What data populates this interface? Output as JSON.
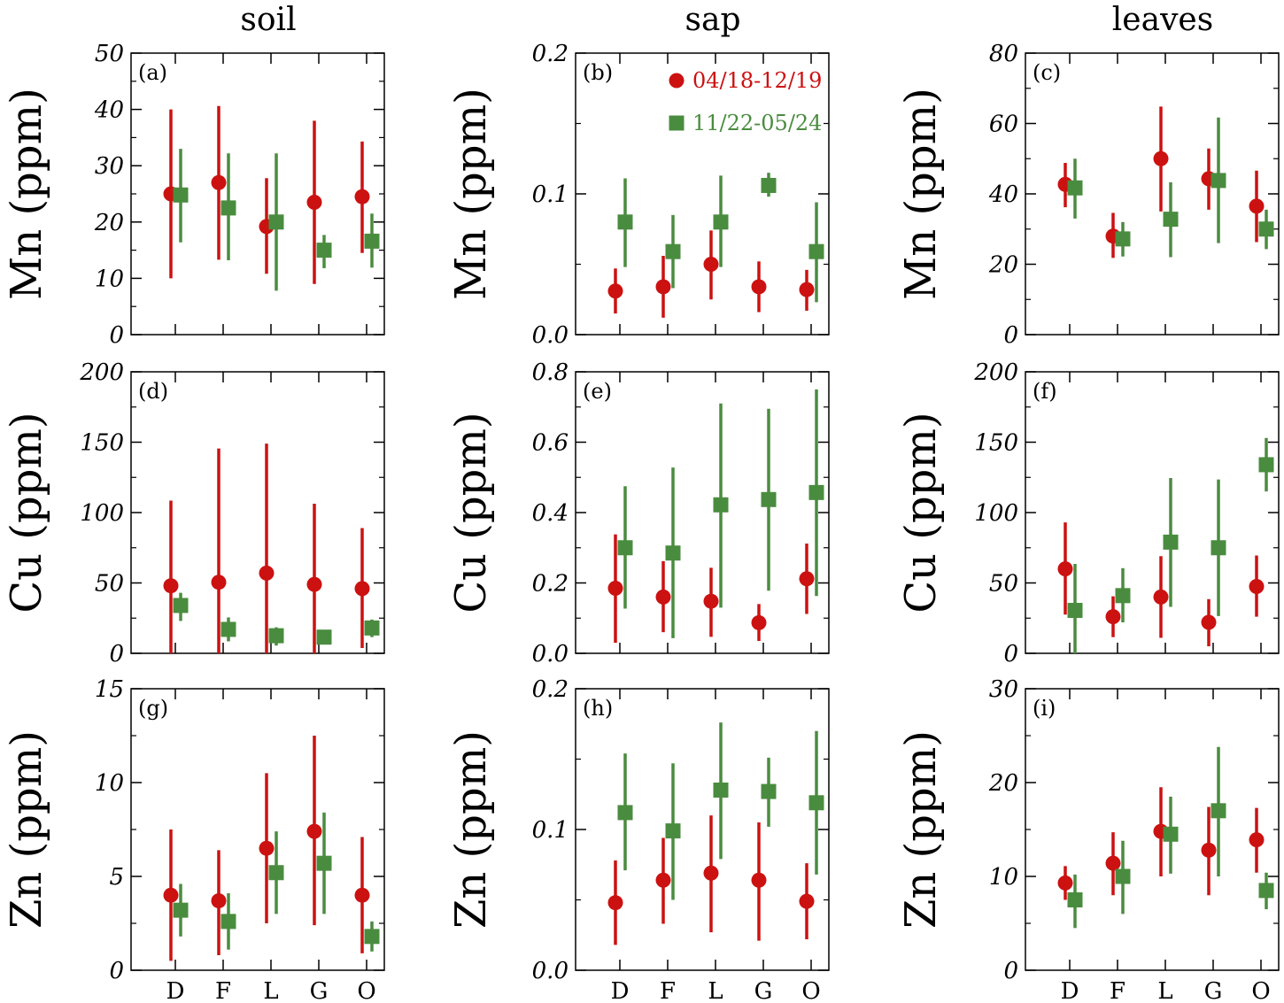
{
  "columns": [
    "soil",
    "sap",
    "leaves"
  ],
  "legend": {
    "entries": [
      {
        "name": "04/18-12/19",
        "color": "#cc1111",
        "marker": "circle"
      },
      {
        "name": "11/22-05/24",
        "color": "#4a8c3f",
        "marker": "square"
      }
    ]
  },
  "chart_data": [
    {
      "type": "scatter",
      "panel": "(a)",
      "ylabel": "Mn (ppm)",
      "ylim": [
        0,
        50
      ],
      "yticks": [
        "0",
        "10",
        "20",
        "30",
        "40",
        "50"
      ],
      "categories": [
        "D",
        "F",
        "L",
        "G",
        "O"
      ],
      "series": [
        {
          "name": "04/18-12/19",
          "values": [
            25,
            27,
            19.2,
            23.5,
            24.5
          ],
          "err_low": [
            10,
            13.3,
            10.8,
            9,
            14.5
          ],
          "err_high": [
            40,
            40.6,
            27.8,
            38,
            34.3
          ]
        },
        {
          "name": "11/22-05/24",
          "values": [
            24.8,
            22.5,
            20,
            15,
            16.6
          ],
          "err_low": [
            16.4,
            13.2,
            7.8,
            11.8,
            11.9
          ],
          "err_high": [
            33,
            32.2,
            32.2,
            17.7,
            21.5
          ]
        }
      ]
    },
    {
      "type": "scatter",
      "panel": "(b)",
      "ylabel": "Mn (ppm)",
      "ylim": [
        0,
        0.2
      ],
      "yticks": [
        "0.0",
        "0.1",
        "0.2"
      ],
      "categories": [
        "D",
        "F",
        "L",
        "G",
        "O"
      ],
      "series": [
        {
          "name": "04/18-12/19",
          "values": [
            0.031,
            0.034,
            0.05,
            0.034,
            0.032
          ],
          "err_low": [
            0.015,
            0.012,
            0.025,
            0.016,
            0.017
          ],
          "err_high": [
            0.047,
            0.056,
            0.074,
            0.052,
            0.046
          ]
        },
        {
          "name": "11/22-05/24",
          "values": [
            0.08,
            0.059,
            0.08,
            0.106,
            0.059
          ],
          "err_low": [
            0.048,
            0.033,
            0.048,
            0.098,
            0.023
          ],
          "err_high": [
            0.111,
            0.085,
            0.113,
            0.115,
            0.094
          ]
        }
      ]
    },
    {
      "type": "scatter",
      "panel": "(c)",
      "ylabel": "Mn (ppm)",
      "ylim": [
        0,
        80
      ],
      "yticks": [
        "0",
        "20",
        "40",
        "60",
        "80"
      ],
      "categories": [
        "D",
        "F",
        "L",
        "G",
        "O"
      ],
      "series": [
        {
          "name": "04/18-12/19",
          "values": [
            42.7,
            28,
            50,
            44.3,
            36.5
          ],
          "err_low": [
            36.2,
            21.8,
            35,
            35.5,
            26.3
          ],
          "err_high": [
            48.8,
            34.6,
            64.8,
            52.9,
            46.6
          ]
        },
        {
          "name": "11/22-05/24",
          "values": [
            41.7,
            27.2,
            32.8,
            43.8,
            30
          ],
          "err_low": [
            33,
            22.2,
            22,
            26,
            24.3
          ],
          "err_high": [
            50,
            32,
            43.3,
            61.7,
            35.5
          ]
        }
      ]
    },
    {
      "type": "scatter",
      "panel": "(d)",
      "ylabel": "Cu (ppm)",
      "ylim": [
        0,
        200
      ],
      "yticks": [
        "0",
        "50",
        "100",
        "150",
        "200"
      ],
      "categories": [
        "D",
        "F",
        "L",
        "G",
        "O"
      ],
      "series": [
        {
          "name": "04/18-12/19",
          "values": [
            48,
            50.5,
            57,
            49,
            46
          ],
          "err_low": [
            0,
            0,
            0,
            0,
            3.8
          ],
          "err_high": [
            108.5,
            145.5,
            149,
            106.3,
            89
          ]
        },
        {
          "name": "11/22-05/24",
          "values": [
            34,
            17,
            12.5,
            11.5,
            18
          ],
          "err_low": [
            23,
            8.5,
            5.5,
            7,
            11.5
          ],
          "err_high": [
            43,
            25.5,
            18.5,
            15.5,
            24
          ]
        }
      ]
    },
    {
      "type": "scatter",
      "panel": "(e)",
      "ylabel": "Cu (ppm)",
      "ylim": [
        0,
        0.8
      ],
      "yticks": [
        "0.0",
        "0.2",
        "0.4",
        "0.6",
        "0.8"
      ],
      "categories": [
        "D",
        "F",
        "L",
        "G",
        "O"
      ],
      "series": [
        {
          "name": "04/18-12/19",
          "values": [
            0.185,
            0.16,
            0.148,
            0.087,
            0.212
          ],
          "err_low": [
            0.03,
            0.06,
            0.047,
            0.035,
            0.112
          ],
          "err_high": [
            0.338,
            0.262,
            0.243,
            0.14,
            0.312
          ]
        },
        {
          "name": "11/22-05/24",
          "values": [
            0.3,
            0.285,
            0.422,
            0.437,
            0.457
          ],
          "err_low": [
            0.127,
            0.043,
            0.13,
            0.178,
            0.163
          ],
          "err_high": [
            0.475,
            0.528,
            0.71,
            0.695,
            0.75
          ]
        }
      ]
    },
    {
      "type": "scatter",
      "panel": "(f)",
      "ylabel": "Cu (ppm)",
      "ylim": [
        0,
        200
      ],
      "yticks": [
        "0",
        "50",
        "100",
        "150",
        "200"
      ],
      "categories": [
        "D",
        "F",
        "L",
        "G",
        "O"
      ],
      "series": [
        {
          "name": "04/18-12/19",
          "values": [
            60,
            26,
            40,
            22,
            47.5
          ],
          "err_low": [
            27.5,
            11.5,
            11,
            5,
            26
          ],
          "err_high": [
            93,
            40.5,
            69,
            38.5,
            69.5
          ]
        },
        {
          "name": "11/22-05/24",
          "values": [
            30.5,
            41,
            79,
            75,
            134
          ],
          "err_low": [
            0,
            22,
            33,
            26.5,
            115
          ],
          "err_high": [
            63.5,
            60.5,
            124.5,
            123.5,
            153
          ]
        }
      ]
    },
    {
      "type": "scatter",
      "panel": "(g)",
      "ylabel": "Zn (ppm)",
      "ylim": [
        0,
        15
      ],
      "yticks": [
        "0",
        "5",
        "10",
        "15"
      ],
      "categories": [
        "D",
        "F",
        "L",
        "G",
        "O"
      ],
      "series": [
        {
          "name": "04/18-12/19",
          "values": [
            4,
            3.7,
            6.5,
            7.4,
            4
          ],
          "err_low": [
            0.5,
            0.8,
            2.5,
            2.4,
            0.9
          ],
          "err_high": [
            7.5,
            6.4,
            10.5,
            12.5,
            7.1
          ]
        },
        {
          "name": "11/22-05/24",
          "values": [
            3.2,
            2.6,
            5.2,
            5.7,
            1.8
          ],
          "err_low": [
            1.8,
            1.1,
            3,
            3,
            1
          ],
          "err_high": [
            4.6,
            4.1,
            7.4,
            8.4,
            2.6
          ]
        }
      ]
    },
    {
      "type": "scatter",
      "panel": "(h)",
      "ylabel": "Zn (ppm)",
      "ylim": [
        0,
        0.2
      ],
      "yticks": [
        "0.0",
        "0.1",
        "0.2"
      ],
      "categories": [
        "D",
        "F",
        "L",
        "G",
        "O"
      ],
      "series": [
        {
          "name": "04/18-12/19",
          "values": [
            0.048,
            0.064,
            0.069,
            0.064,
            0.049
          ],
          "err_low": [
            0.018,
            0.033,
            0.027,
            0.021,
            0.022
          ],
          "err_high": [
            0.078,
            0.094,
            0.11,
            0.105,
            0.076
          ]
        },
        {
          "name": "11/22-05/24",
          "values": [
            0.112,
            0.099,
            0.128,
            0.127,
            0.119
          ],
          "err_low": [
            0.071,
            0.05,
            0.079,
            0.102,
            0.068
          ],
          "err_high": [
            0.154,
            0.147,
            0.176,
            0.151,
            0.17
          ]
        }
      ]
    },
    {
      "type": "scatter",
      "panel": "(i)",
      "ylabel": "Zn (ppm)",
      "ylim": [
        0,
        30
      ],
      "yticks": [
        "0",
        "10",
        "20",
        "30"
      ],
      "categories": [
        "D",
        "F",
        "L",
        "G",
        "O"
      ],
      "series": [
        {
          "name": "04/18-12/19",
          "values": [
            9.3,
            11.4,
            14.8,
            12.8,
            13.9
          ],
          "err_low": [
            7.5,
            8,
            10,
            8,
            10.4
          ],
          "err_high": [
            11.1,
            14.7,
            19.5,
            17.4,
            17.3
          ]
        },
        {
          "name": "11/22-05/24",
          "values": [
            7.5,
            10,
            14.5,
            17,
            8.5
          ],
          "err_low": [
            4.5,
            6,
            10.3,
            10,
            6.5
          ],
          "err_high": [
            10.2,
            13.8,
            18.5,
            23.8,
            10.4
          ]
        }
      ]
    }
  ]
}
